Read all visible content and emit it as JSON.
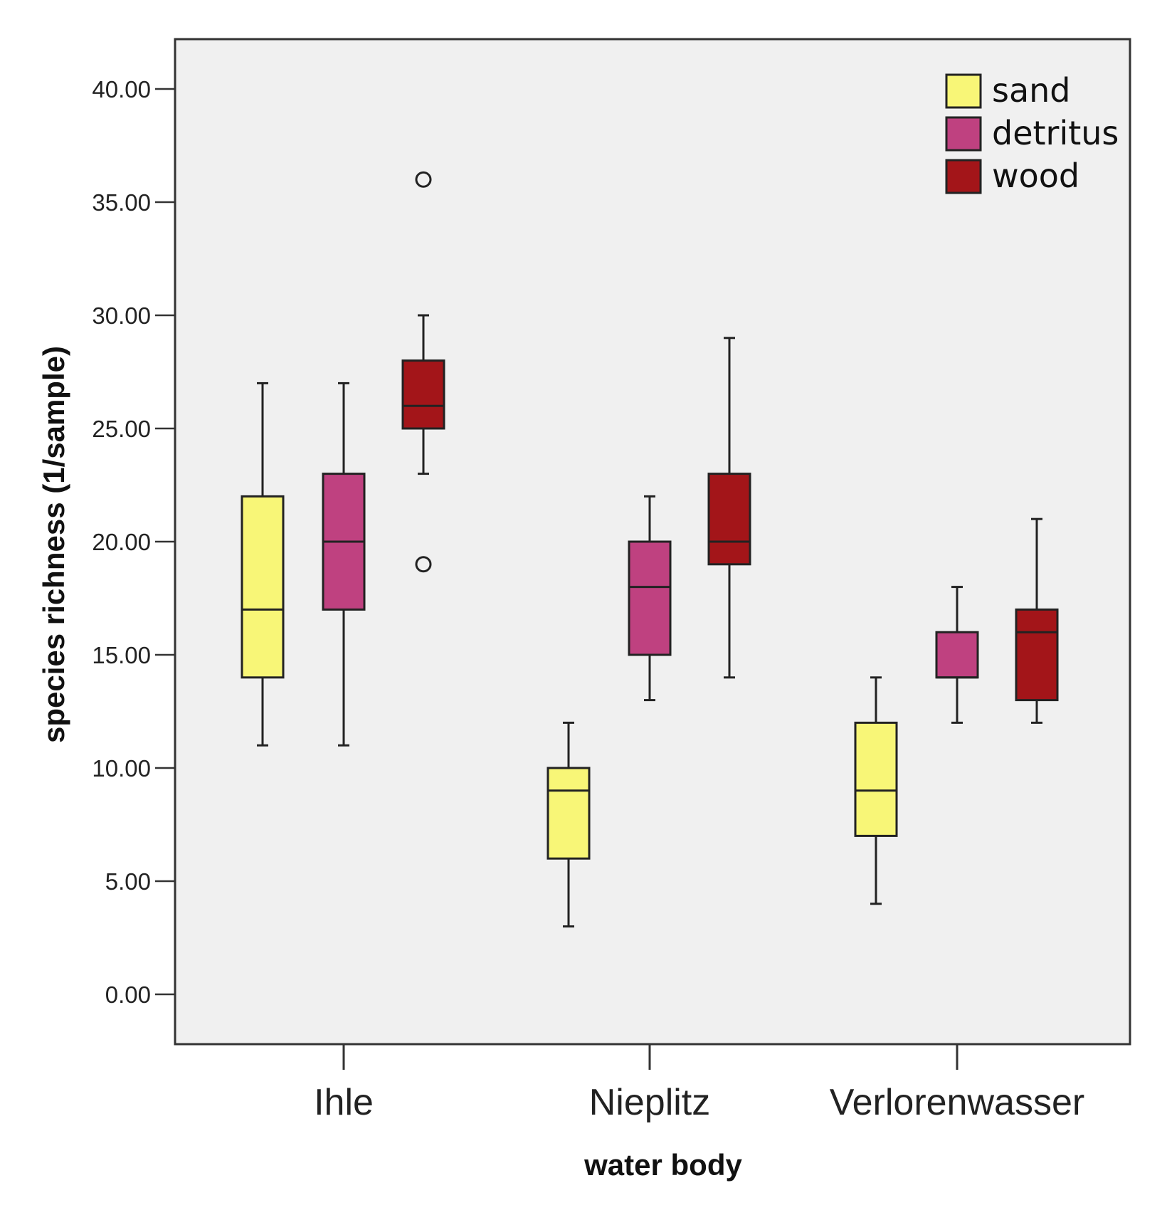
{
  "chart_data": {
    "type": "boxplot",
    "title": "",
    "xlabel": "water body",
    "ylabel": "species richness (1/sample)",
    "ylim": [
      -2.2,
      42.3
    ],
    "yticks": [
      0,
      5,
      10,
      15,
      20,
      25,
      30,
      35,
      40
    ],
    "ytick_labels": [
      "0.00",
      "5.00",
      "10.00",
      "15.00",
      "20.00",
      "25.00",
      "30.00",
      "35.00",
      "40.00"
    ],
    "categories": [
      "Ihle",
      "Nieplitz",
      "Verlorenwasser"
    ],
    "legend_position": "top-right",
    "series": [
      {
        "name": "sand",
        "color": "#f8f677",
        "boxes": [
          {
            "min": 11,
            "q1": 14,
            "median": 17,
            "q3": 22,
            "max": 27,
            "outliers": []
          },
          {
            "min": 3,
            "q1": 6,
            "median": 9,
            "q3": 10,
            "max": 12,
            "outliers": []
          },
          {
            "min": 4,
            "q1": 7,
            "median": 9,
            "q3": 12,
            "max": 14,
            "outliers": []
          }
        ]
      },
      {
        "name": "detritus",
        "color": "#bf4180",
        "boxes": [
          {
            "min": 11,
            "q1": 17,
            "median": 20,
            "q3": 23,
            "max": 27,
            "outliers": []
          },
          {
            "min": 13,
            "q1": 15,
            "median": 18,
            "q3": 20,
            "max": 22,
            "outliers": []
          },
          {
            "min": 12,
            "q1": 14,
            "median": 14,
            "q3": 16,
            "max": 18,
            "outliers": []
          }
        ]
      },
      {
        "name": "wood",
        "color": "#a31519",
        "boxes": [
          {
            "min": 23,
            "q1": 25,
            "median": 26,
            "q3": 28,
            "max": 30,
            "outliers": [
              36,
              19
            ]
          },
          {
            "min": 14,
            "q1": 19,
            "median": 20,
            "q3": 23,
            "max": 29,
            "outliers": []
          },
          {
            "min": 12,
            "q1": 13,
            "median": 16,
            "q3": 17,
            "max": 21,
            "outliers": []
          }
        ]
      }
    ]
  }
}
